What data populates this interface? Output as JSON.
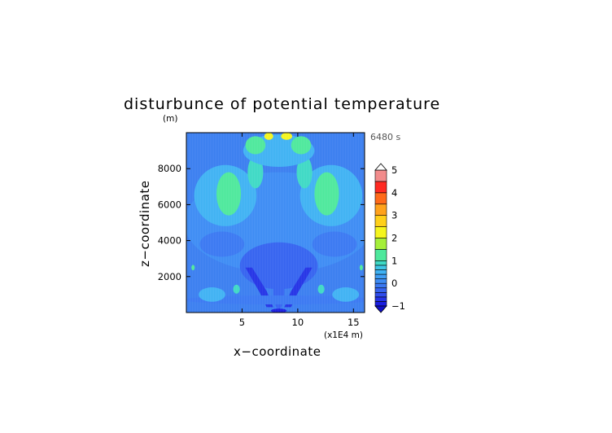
{
  "chart_data": {
    "type": "heatmap",
    "title": "disturbunce of potential temperature",
    "xlabel": "x−coordinate",
    "ylabel": "z−coordinate",
    "x_unit_label": "(x1E4 m)",
    "y_unit_label": "(m)",
    "time_label": "6480 s",
    "xlim": [
      0,
      16
    ],
    "ylim": [
      0,
      10000
    ],
    "x_ticks": [
      {
        "value": 5,
        "label": "5"
      },
      {
        "value": 10,
        "label": "10"
      },
      {
        "value": 15,
        "label": "15"
      }
    ],
    "y_ticks": [
      {
        "value": 2000,
        "label": "2000"
      },
      {
        "value": 4000,
        "label": "4000"
      },
      {
        "value": 6000,
        "label": "6000"
      },
      {
        "value": 8000,
        "label": "8000"
      }
    ],
    "colorbar": {
      "min": -1,
      "max": 5,
      "tick_labels": [
        {
          "value": -1,
          "label": "−1"
        },
        {
          "value": 0,
          "label": "0"
        },
        {
          "value": 1,
          "label": "1"
        },
        {
          "value": 2,
          "label": "2"
        },
        {
          "value": 3,
          "label": "3"
        },
        {
          "value": 4,
          "label": "4"
        },
        {
          "value": 5,
          "label": "5"
        }
      ],
      "levels": [
        {
          "from": -1.0,
          "to": -0.8,
          "color": "#1a1ee0"
        },
        {
          "from": -0.8,
          "to": -0.6,
          "color": "#2433e6"
        },
        {
          "from": -0.6,
          "to": -0.4,
          "color": "#2f4cec"
        },
        {
          "from": -0.4,
          "to": -0.2,
          "color": "#3563f0"
        },
        {
          "from": -0.2,
          "to": 0.0,
          "color": "#3a78f2"
        },
        {
          "from": 0.0,
          "to": 0.2,
          "color": "#3d8cf4"
        },
        {
          "from": 0.2,
          "to": 0.4,
          "color": "#3f9ef5"
        },
        {
          "from": 0.4,
          "to": 0.6,
          "color": "#3fb2f3"
        },
        {
          "from": 0.6,
          "to": 0.8,
          "color": "#3fc6e6"
        },
        {
          "from": 0.8,
          "to": 1.0,
          "color": "#3ed9c5"
        },
        {
          "from": 1.0,
          "to": 1.5,
          "color": "#4ee89c"
        },
        {
          "from": 1.5,
          "to": 2.0,
          "color": "#a5ef3a"
        },
        {
          "from": 2.0,
          "to": 2.5,
          "color": "#f5f51e"
        },
        {
          "from": 2.5,
          "to": 3.0,
          "color": "#ffd01a"
        },
        {
          "from": 3.0,
          "to": 3.5,
          "color": "#ffa21c"
        },
        {
          "from": 3.5,
          "to": 4.0,
          "color": "#ff6a1a"
        },
        {
          "from": 4.0,
          "to": 4.5,
          "color": "#ff2a22"
        },
        {
          "from": 4.5,
          "to": 5.0,
          "color": "#f28c8c"
        }
      ],
      "under_color": "#1010c8",
      "over_color": "#ffffff"
    },
    "background_color": "#3a7ef0",
    "regions": [
      {
        "kind": "ellipse",
        "x": 8.3,
        "z": 5000,
        "rx": 8.5,
        "rz": 2800,
        "value": 0.1,
        "desc": "broad mid-level slightly positive"
      },
      {
        "kind": "ellipse",
        "x": 3.5,
        "z": 6500,
        "rx": 2.8,
        "rz": 1700,
        "value": 0.4
      },
      {
        "kind": "ellipse",
        "x": 13.0,
        "z": 6500,
        "rx": 2.8,
        "rz": 1700,
        "value": 0.4
      },
      {
        "kind": "ellipse",
        "x": 3.8,
        "z": 6600,
        "rx": 1.1,
        "rz": 1200,
        "value": 1.0
      },
      {
        "kind": "ellipse",
        "x": 12.6,
        "z": 6600,
        "rx": 1.1,
        "rz": 1200,
        "value": 1.0
      },
      {
        "kind": "ellipse",
        "x": 6.2,
        "z": 7800,
        "rx": 0.7,
        "rz": 900,
        "value": 0.8
      },
      {
        "kind": "ellipse",
        "x": 10.6,
        "z": 7800,
        "rx": 0.7,
        "rz": 900,
        "value": 0.8
      },
      {
        "kind": "ellipse",
        "x": 8.3,
        "z": 9000,
        "rx": 3.2,
        "rz": 900,
        "value": 0.5
      },
      {
        "kind": "ellipse",
        "x": 6.2,
        "z": 9300,
        "rx": 0.9,
        "rz": 500,
        "value": 1.0
      },
      {
        "kind": "ellipse",
        "x": 10.3,
        "z": 9300,
        "rx": 0.9,
        "rz": 500,
        "value": 1.0
      },
      {
        "kind": "ellipse",
        "x": 7.4,
        "z": 9800,
        "rx": 0.4,
        "rz": 200,
        "value": 2.2
      },
      {
        "kind": "ellipse",
        "x": 9.0,
        "z": 9800,
        "rx": 0.5,
        "rz": 200,
        "value": 2.2
      },
      {
        "kind": "ellipse",
        "x": 3.2,
        "z": 3800,
        "rx": 2.0,
        "rz": 700,
        "value": -0.2
      },
      {
        "kind": "ellipse",
        "x": 13.3,
        "z": 3800,
        "rx": 2.0,
        "rz": 700,
        "value": -0.2
      },
      {
        "kind": "ellipse",
        "x": 8.3,
        "z": 2600,
        "rx": 3.5,
        "rz": 1300,
        "value": -0.3
      },
      {
        "kind": "polygon",
        "value": -0.8,
        "points": [
          [
            5.3,
            2500
          ],
          [
            5.9,
            2500
          ],
          [
            7.2,
            1200
          ],
          [
            7.8,
            300
          ],
          [
            7.2,
            300
          ],
          [
            6.6,
            1100
          ]
        ]
      },
      {
        "kind": "polygon",
        "value": -0.8,
        "points": [
          [
            11.3,
            2500
          ],
          [
            10.7,
            2500
          ],
          [
            9.4,
            1200
          ],
          [
            8.8,
            300
          ],
          [
            9.4,
            300
          ],
          [
            10.0,
            1100
          ]
        ]
      },
      {
        "kind": "ellipse",
        "x": 8.3,
        "z": 1200,
        "rx": 0.5,
        "rz": 1000,
        "value": -0.4
      },
      {
        "kind": "ellipse",
        "x": 8.3,
        "z": 100,
        "rx": 0.7,
        "rz": 120,
        "value": -1.0
      },
      {
        "kind": "ellipse",
        "x": 8.3,
        "z": 700,
        "rx": 8.5,
        "rz": 250,
        "value": -0.2
      },
      {
        "kind": "ellipse",
        "x": 2.3,
        "z": 1000,
        "rx": 1.2,
        "rz": 400,
        "value": 0.4
      },
      {
        "kind": "ellipse",
        "x": 14.3,
        "z": 1000,
        "rx": 1.2,
        "rz": 400,
        "value": 0.4
      },
      {
        "kind": "ellipse",
        "x": 4.5,
        "z": 1300,
        "rx": 0.3,
        "rz": 250,
        "value": 0.9
      },
      {
        "kind": "ellipse",
        "x": 12.1,
        "z": 1300,
        "rx": 0.3,
        "rz": 250,
        "value": 0.9
      },
      {
        "kind": "ellipse",
        "x": 0.6,
        "z": 2500,
        "rx": 0.15,
        "rz": 150,
        "value": 1.0
      },
      {
        "kind": "ellipse",
        "x": 15.7,
        "z": 2500,
        "rx": 0.15,
        "rz": 150,
        "value": 1.0
      }
    ]
  }
}
